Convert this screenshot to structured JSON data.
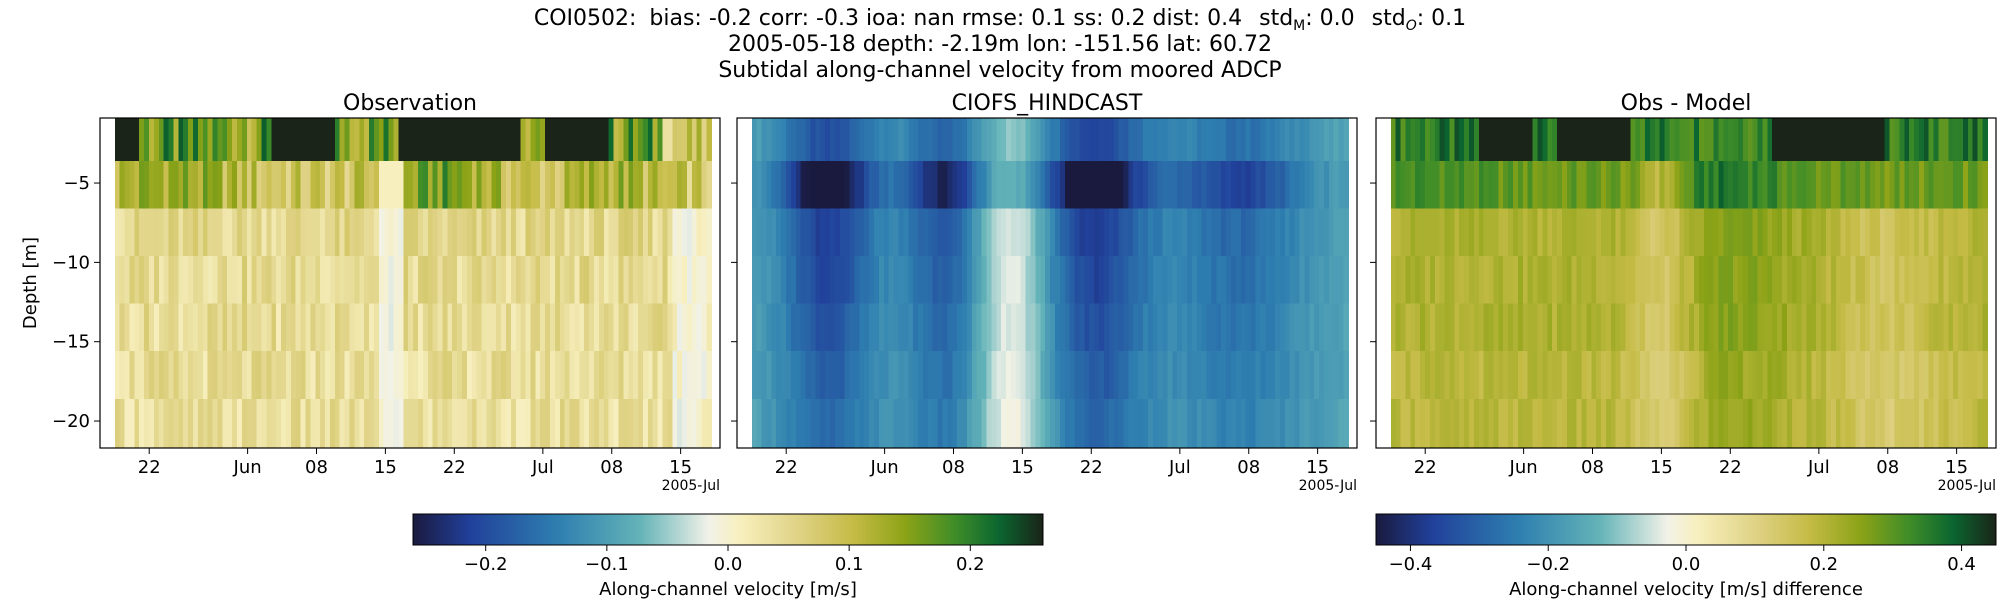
{
  "header": {
    "stats_station": "COI0502:",
    "stats_rest": "bias: -0.2  corr: -0.3  ioa: nan  rmse: 0.1  ss: 0.2  dist: 0.4",
    "std_m_label": "std",
    "std_m_sub": "M",
    "std_m_value": ": 0.0",
    "std_o_label": "std",
    "std_o_sub": "O",
    "std_o_value": ": 0.1",
    "line2": "2005-05-18 depth: -2.19m lon: -151.56 lat: 60.72",
    "line3": "Subtidal along-channel velocity from moored ADCP"
  },
  "chart_data": [
    {
      "type": "heatmap",
      "title": "Observation",
      "ylabel": "Depth [m]",
      "xlabel": "",
      "x_range": [
        "2005-05-17",
        "2005-07-19"
      ],
      "ylim": [
        -21.7,
        -0.9
      ],
      "x_ticks": [
        "22",
        "Jun",
        "08",
        "15",
        "22",
        "Jul",
        "08",
        "15"
      ],
      "x_offset_label": "2005-Jul",
      "y_ticks": [
        -5,
        -10,
        -15,
        -20
      ],
      "depth_bins": [
        -2.19,
        -5.1,
        -8.1,
        -11.1,
        -14.1,
        -17.1,
        -20.1
      ],
      "colorbar": "velocity",
      "pattern": "obs",
      "grid": false
    },
    {
      "type": "heatmap",
      "title": "CIOFS_HINDCAST",
      "ylabel": "",
      "xlabel": "",
      "x_range": [
        "2005-05-17",
        "2005-07-19"
      ],
      "ylim": [
        -21.7,
        -0.9
      ],
      "x_ticks": [
        "22",
        "Jun",
        "08",
        "15",
        "22",
        "Jul",
        "08",
        "15"
      ],
      "x_offset_label": "2005-Jul",
      "y_ticks": [
        -5,
        -10,
        -15,
        -20
      ],
      "depth_bins": [
        -2.19,
        -5.1,
        -8.1,
        -11.1,
        -14.1,
        -17.1,
        -20.1
      ],
      "colorbar": "velocity",
      "pattern": "model",
      "grid": false
    },
    {
      "type": "heatmap",
      "title": "Obs - Model",
      "ylabel": "",
      "xlabel": "",
      "x_range": [
        "2005-05-17",
        "2005-07-19"
      ],
      "ylim": [
        -21.7,
        -0.9
      ],
      "x_ticks": [
        "22",
        "Jun",
        "08",
        "15",
        "22",
        "Jul",
        "08",
        "15"
      ],
      "x_offset_label": "2005-Jul",
      "y_ticks": [
        -5,
        -10,
        -15,
        -20
      ],
      "depth_bins": [
        -2.19,
        -5.1,
        -8.1,
        -11.1,
        -14.1,
        -17.1,
        -20.1
      ],
      "colorbar": "difference",
      "pattern": "diff",
      "grid": false
    }
  ],
  "colorbars": {
    "velocity": {
      "label": "Along-channel velocity [m/s]",
      "range": [
        -0.26,
        0.26
      ],
      "ticks": [
        "−0.2",
        "−0.1",
        "0.0",
        "0.1",
        "0.2"
      ],
      "tick_values": [
        -0.2,
        -0.1,
        0.0,
        0.1,
        0.2
      ]
    },
    "difference": {
      "label": "Along-channel velocity [m/s] difference",
      "range": [
        -0.45,
        0.45
      ],
      "ticks": [
        "−0.4",
        "−0.2",
        "0.0",
        "0.2",
        "0.4"
      ],
      "tick_values": [
        -0.4,
        -0.2,
        0.0,
        0.2,
        0.4
      ]
    }
  },
  "colormap_stops": [
    "#1a1a3e",
    "#21409a",
    "#2e7fb0",
    "#63b3b8",
    "#f2f2e8",
    "#f7efbd",
    "#ddd080",
    "#c4bb45",
    "#8da317",
    "#3f8d28",
    "#0b6630",
    "#1a2418"
  ]
}
